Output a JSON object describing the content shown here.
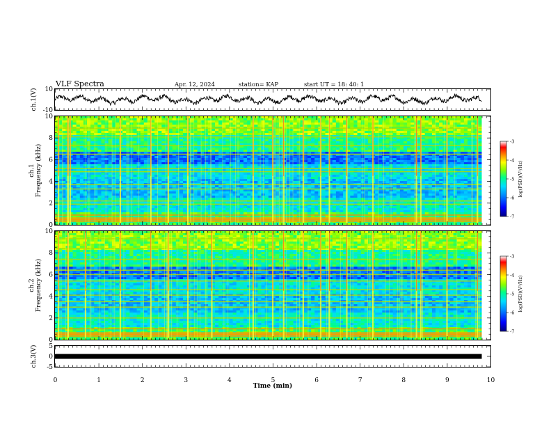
{
  "header": {
    "title": "VLF Spectra",
    "date": "Apr. 12, 2024",
    "station": "station= KAP",
    "start": "start  UT =   18: 40: 1"
  },
  "chart_data": [
    {
      "type": "line",
      "panel": "ch1-waveform",
      "ylabel": "ch.1(V)",
      "ylim": [
        -10,
        10
      ],
      "yticks": [
        "10",
        "-10"
      ],
      "xlim": [
        0,
        10
      ],
      "color": "#000000"
    },
    {
      "type": "heatmap",
      "panel": "ch1-spectrogram",
      "ylabel": "ch.1\nFrequency (kHz)",
      "ylabel_lines": [
        "ch.1",
        "Frequency (kHz)"
      ],
      "ylim": [
        0,
        10
      ],
      "yticks": [
        "0",
        "2",
        "4",
        "6",
        "8",
        "10"
      ],
      "xlim": [
        0,
        10
      ],
      "data_end_min": 9.8,
      "colorbar": {
        "label": "log(PSD)(V²/Hz)",
        "range": [
          -7,
          -3
        ],
        "ticks": [
          "-3",
          "-4",
          "-5",
          "-6",
          "-7"
        ]
      },
      "strong_lines_khz": [
        0.5,
        0.9,
        1.9,
        2.2,
        3.3,
        3.7,
        4.9,
        5.2,
        6.5,
        7.3,
        8.1,
        8.9
      ],
      "bursts_min": [
        0.08,
        0.3,
        0.35,
        1.5,
        2.2,
        2.6,
        3.05,
        4.55,
        5.0,
        5.25,
        5.7,
        6.1,
        6.3,
        6.7,
        7.3,
        8.3,
        8.4,
        9.0,
        9.7
      ]
    },
    {
      "type": "heatmap",
      "panel": "ch2-spectrogram",
      "ylabel": "ch.2\nFrequency (kHz)",
      "ylabel_lines": [
        "ch.2",
        "Frequency (kHz)"
      ],
      "ylim": [
        0,
        10
      ],
      "yticks": [
        "0",
        "2",
        "4",
        "6",
        "8",
        "10"
      ],
      "xlim": [
        0,
        10
      ],
      "data_end_min": 9.8,
      "colorbar": {
        "label": "log(PSD)(V²/Hz)",
        "range": [
          -7,
          -3
        ],
        "ticks": [
          "-3",
          "-4",
          "-5",
          "-6",
          "-7"
        ]
      },
      "strong_lines_khz": [
        0.5,
        1.0,
        2.0,
        3.0,
        3.5,
        4.1,
        4.6,
        5.4,
        6.0,
        6.4,
        7.4,
        8.4,
        9.3
      ],
      "bursts_min": [
        0.08,
        0.3,
        0.7,
        1.5,
        2.2,
        2.6,
        3.05,
        3.6,
        4.55,
        5.0,
        5.25,
        5.7,
        6.1,
        6.3,
        6.7,
        7.3,
        8.3,
        8.4,
        9.0,
        9.7
      ]
    },
    {
      "type": "line",
      "panel": "ch3-waveform",
      "ylabel": "ch.3(V)",
      "ylim": [
        -5,
        5
      ],
      "yticks": [
        "5",
        "0",
        "-5"
      ],
      "xlim": [
        0,
        10
      ],
      "level_v": 0,
      "color": "#000000"
    }
  ],
  "xaxis": {
    "label": "Time (min)",
    "ticks": [
      "0",
      "1",
      "2",
      "3",
      "4",
      "5",
      "6",
      "7",
      "8",
      "9",
      "10"
    ]
  },
  "colors": {
    "frame": "#000000",
    "colormap": [
      "#000080",
      "#0000ff",
      "#0088ff",
      "#00ddff",
      "#00ff88",
      "#88ff00",
      "#ffff00",
      "#ff8800",
      "#ff0000",
      "#ffffff"
    ]
  }
}
